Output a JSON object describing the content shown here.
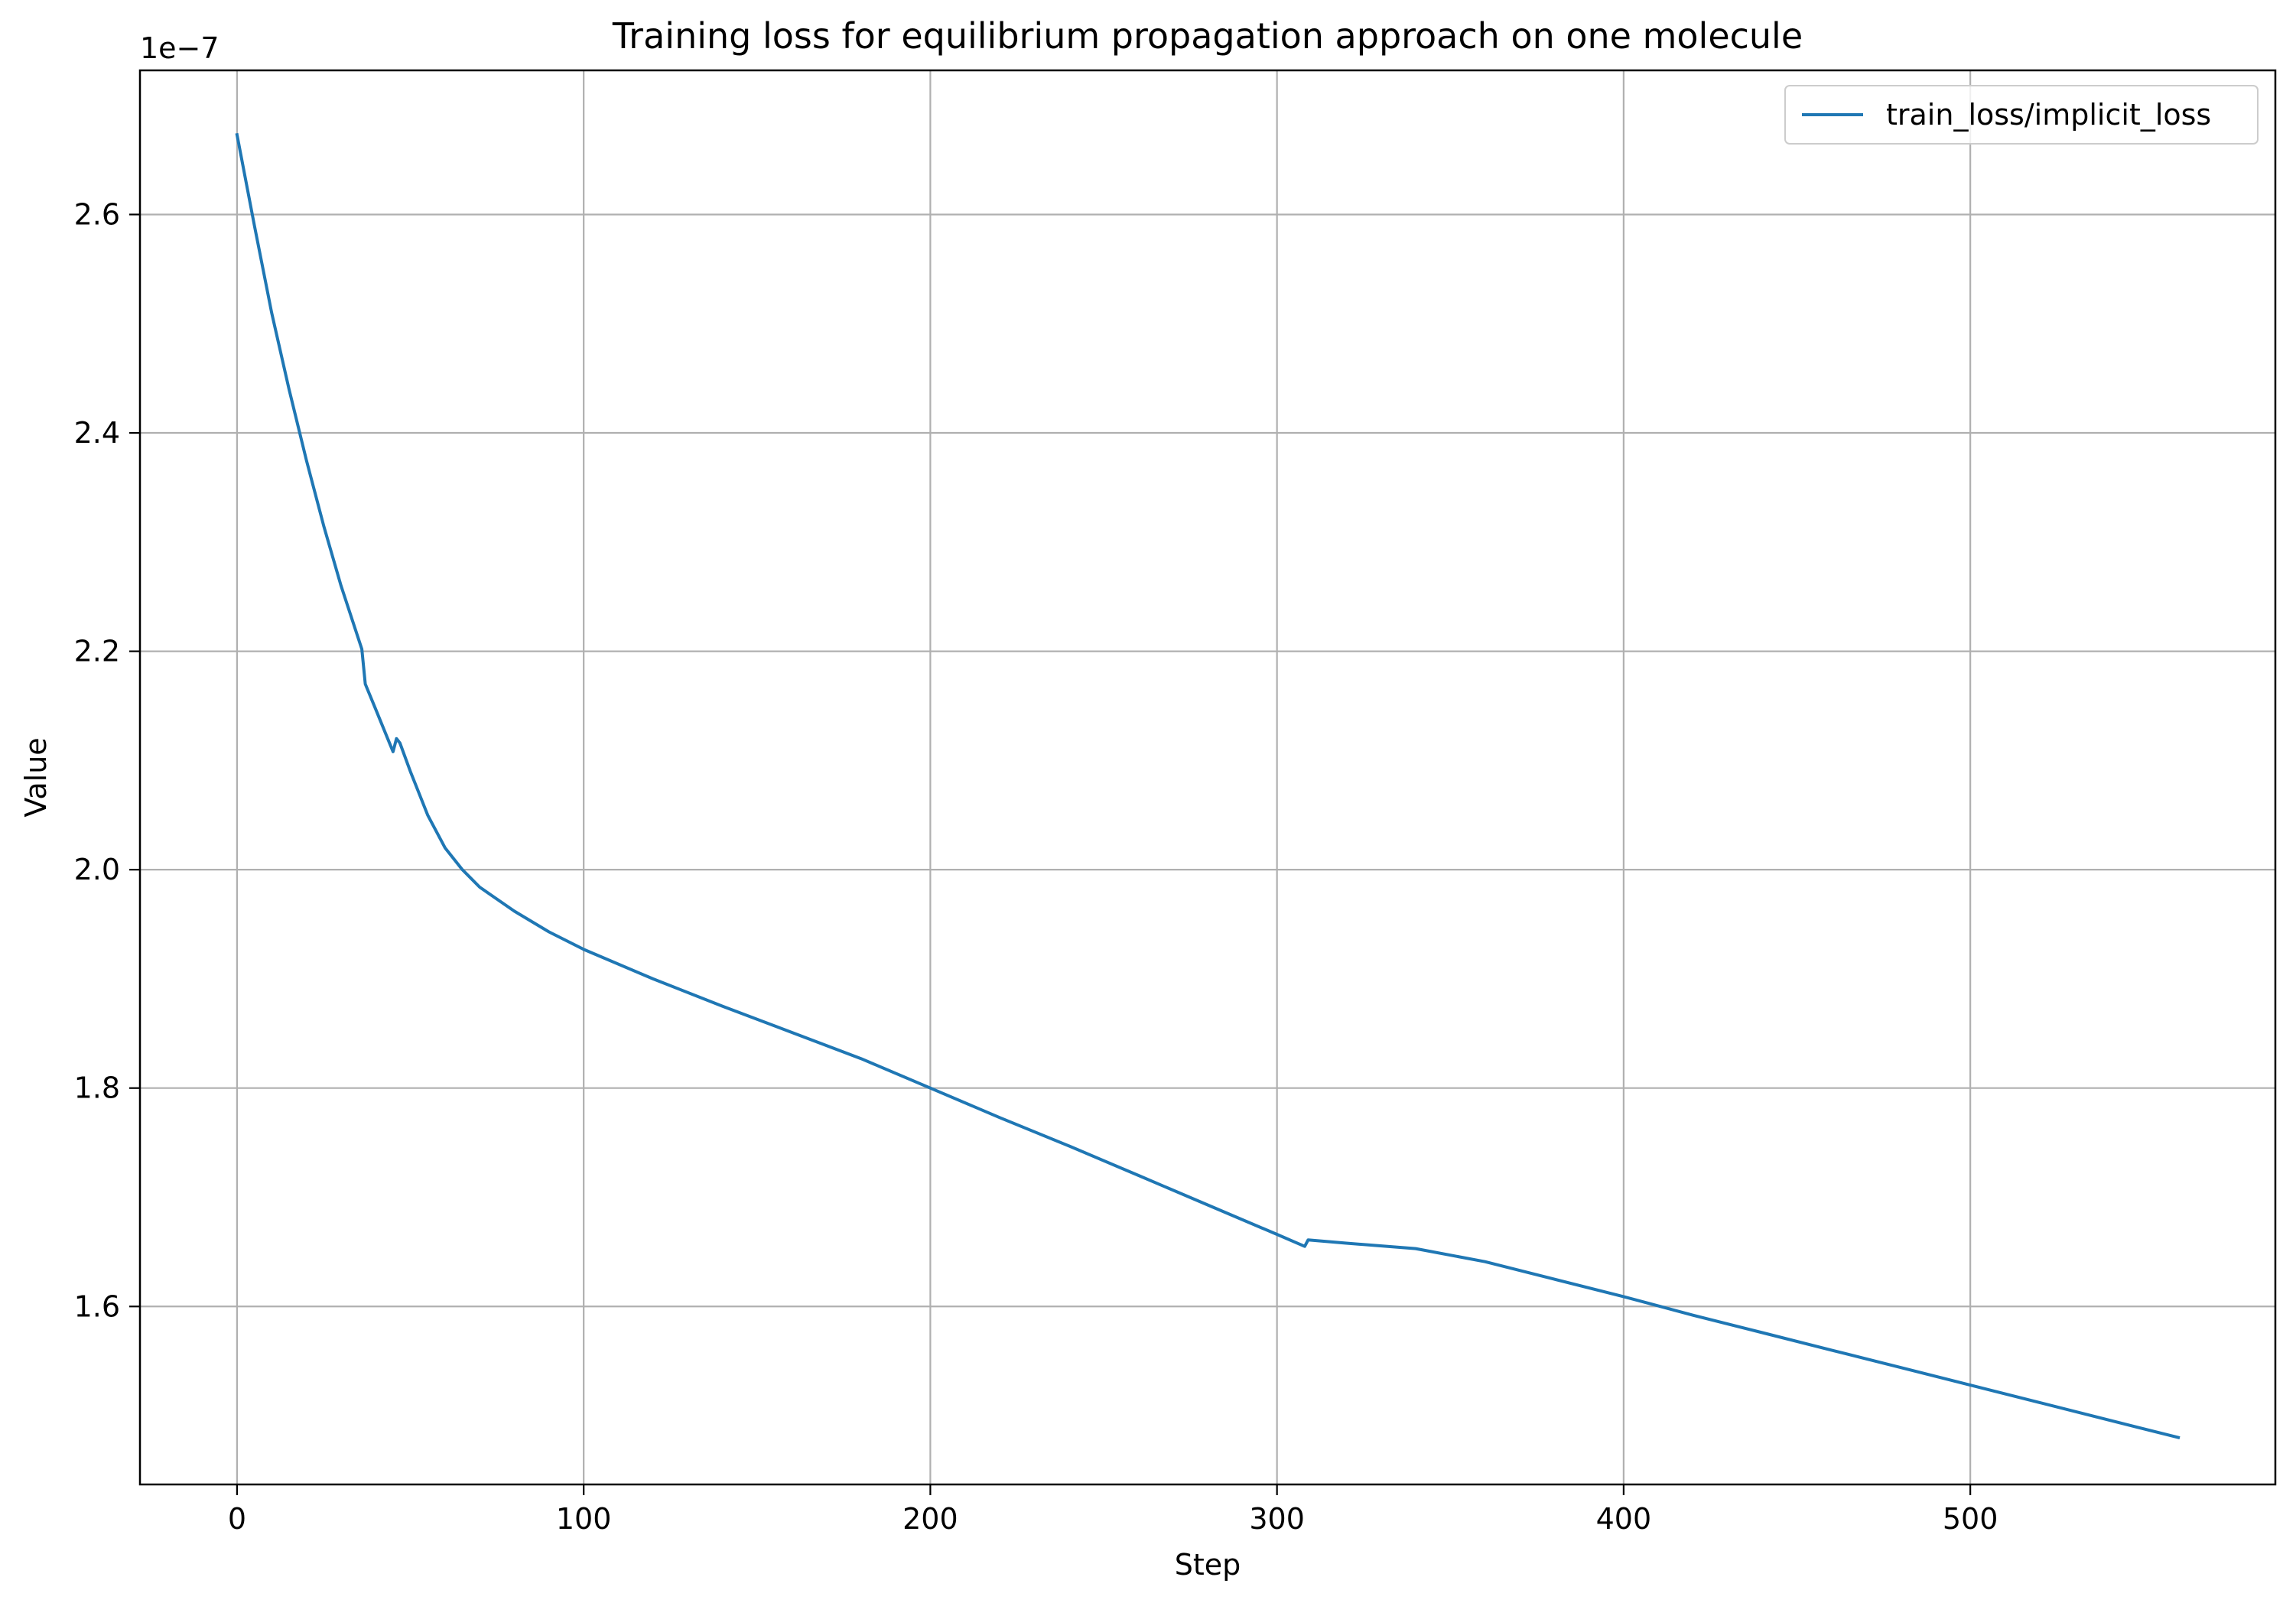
{
  "chart_data": {
    "type": "line",
    "title": "Training loss for equilibrium propagation approach on one molecule",
    "xlabel": "Step",
    "ylabel": "Value",
    "y_offset_label": "1e−7",
    "y_scale": 1e-07,
    "xlim": [
      -28,
      588
    ],
    "ylim": [
      1.437,
      2.732
    ],
    "x_ticks": [
      0,
      100,
      200,
      300,
      400,
      500
    ],
    "x_tick_labels": [
      "0",
      "100",
      "200",
      "300",
      "400",
      "500"
    ],
    "y_ticks": [
      1.6,
      1.8,
      2.0,
      2.2,
      2.4,
      2.6
    ],
    "y_tick_labels": [
      "1.6",
      "1.8",
      "2.0",
      "2.2",
      "2.4",
      "2.6"
    ],
    "grid": true,
    "legend_position": "top-right",
    "colors": {
      "series": "#1f77b4",
      "grid": "#b0b0b0",
      "axes": "#000000"
    },
    "series": [
      {
        "name": "train_loss/implicit_loss",
        "x": [
          0,
          5,
          10,
          15,
          20,
          25,
          30,
          36,
          37,
          40,
          45,
          46,
          47,
          50,
          55,
          60,
          65,
          70,
          80,
          90,
          100,
          120,
          140,
          160,
          180,
          200,
          220,
          240,
          260,
          280,
          300,
          308,
          309,
          320,
          340,
          360,
          380,
          400,
          420,
          440,
          460,
          480,
          500,
          520,
          540,
          560
        ],
        "y": [
          2.673,
          2.59,
          2.51,
          2.44,
          2.375,
          2.315,
          2.26,
          2.202,
          2.17,
          2.147,
          2.108,
          2.12,
          2.116,
          2.09,
          2.05,
          2.02,
          2.0,
          1.984,
          1.962,
          1.943,
          1.927,
          1.9,
          1.875,
          1.851,
          1.827,
          1.8,
          1.773,
          1.747,
          1.72,
          1.693,
          1.666,
          1.655,
          1.661,
          1.658,
          1.653,
          1.641,
          1.625,
          1.609,
          1.592,
          1.576,
          1.56,
          1.544,
          1.528,
          1.512,
          1.496,
          1.48
        ]
      }
    ]
  }
}
